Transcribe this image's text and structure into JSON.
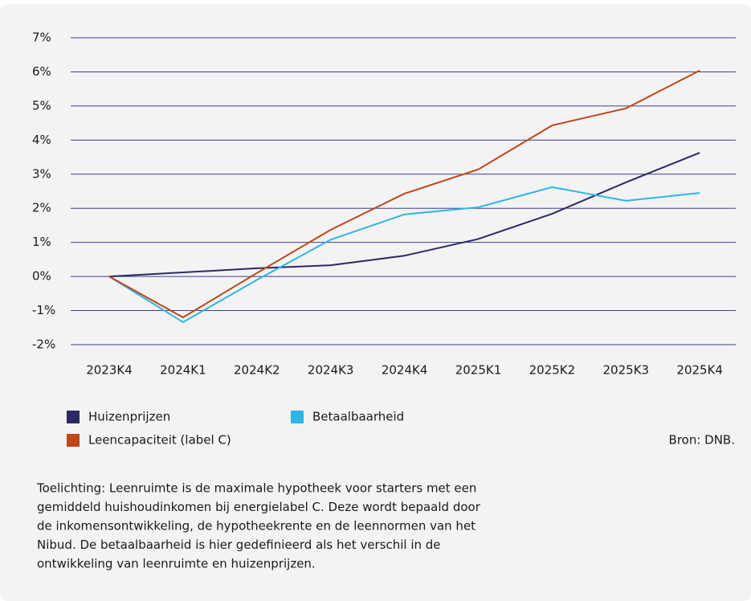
{
  "chart_data": {
    "type": "line",
    "categories": [
      "2023K4",
      "2024K1",
      "2024K2",
      "2024K3",
      "2024K4",
      "2025K1",
      "2025K2",
      "2025K3",
      "2025K4"
    ],
    "series": [
      {
        "name": "Huizenprijzen",
        "color": "#2b2a64",
        "values": [
          0,
          0.12,
          0.24,
          0.33,
          0.61,
          1.1,
          1.84,
          2.76,
          3.63
        ]
      },
      {
        "name": "Betaalbaarheid",
        "color": "#2db5e6",
        "values": [
          0,
          -1.34,
          -0.1,
          1.08,
          1.82,
          2.03,
          2.62,
          2.22,
          2.45
        ]
      },
      {
        "name": "Leencapaciteit (label C)",
        "color": "#c0461b",
        "values": [
          0,
          -1.2,
          0.1,
          1.37,
          2.43,
          3.14,
          4.43,
          4.93,
          6.04
        ]
      }
    ],
    "ylim": [
      -2,
      7
    ],
    "yticks": [
      {
        "value": -2,
        "label": "-2%"
      },
      {
        "value": -1,
        "label": "-1%"
      },
      {
        "value": 0,
        "label": "0%"
      },
      {
        "value": 1,
        "label": "1%"
      },
      {
        "value": 2,
        "label": "2%"
      },
      {
        "value": 3,
        "label": "3%"
      },
      {
        "value": 4,
        "label": "4%"
      },
      {
        "value": 5,
        "label": "5%"
      },
      {
        "value": 6,
        "label": "6%"
      },
      {
        "value": 7,
        "label": "7%"
      }
    ],
    "grid": true,
    "source": "Bron: DNB.",
    "note": [
      "Toelichting: Leenruimte is de maximale hypotheek voor starters met een",
      "gemiddeld huishoudinkomen bij energielabel C. Deze wordt bepaald door",
      "de inkomensontwikkeling, de hypotheekrente en de leennormen van het",
      "Nibud. De betaalbaarheid is hier gedefinieerd als het verschil in de",
      "ontwikkeling van leenruimte en huizenprijzen."
    ]
  }
}
